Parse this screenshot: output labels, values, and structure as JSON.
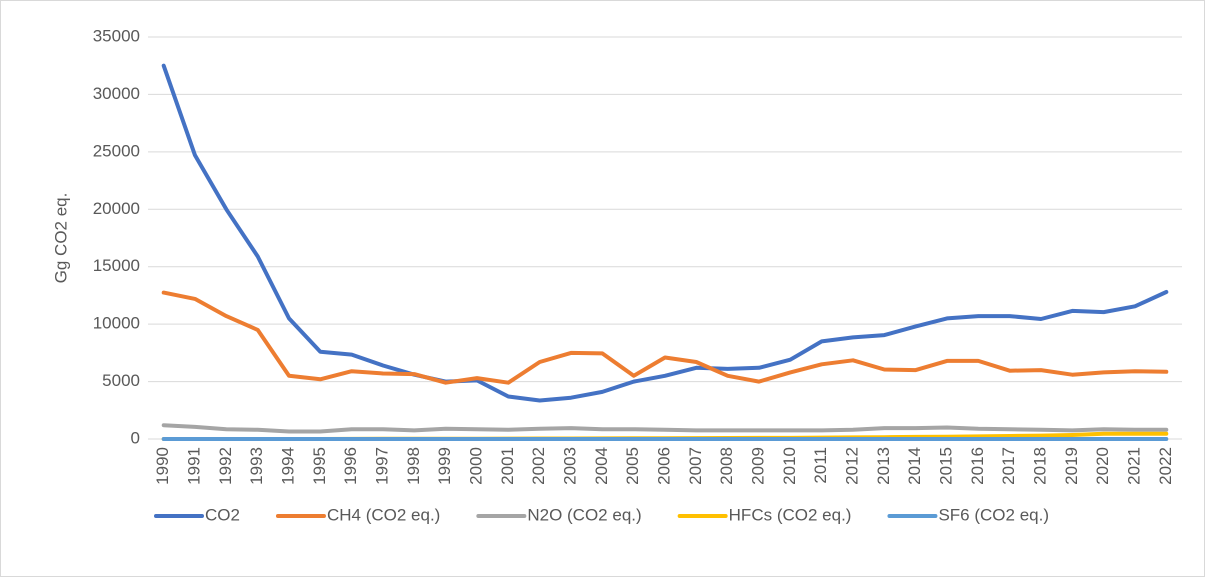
{
  "chart_data": {
    "type": "line",
    "y_label": "Gg CO2 eq.",
    "categories": [
      "1990",
      "1991",
      "1992",
      "1993",
      "1994",
      "1995",
      "1996",
      "1997",
      "1998",
      "1999",
      "2000",
      "2001",
      "2002",
      "2003",
      "2004",
      "2005",
      "2006",
      "2007",
      "2008",
      "2009",
      "2010",
      "2011",
      "2012",
      "2013",
      "2014",
      "2015",
      "2016",
      "2017",
      "2018",
      "2019",
      "2020",
      "2021",
      "2022"
    ],
    "series": [
      {
        "name": "CO2",
        "color": "#4472c4",
        "values": [
          32500,
          24700,
          20000,
          15900,
          10500,
          7600,
          7350,
          6400,
          5600,
          5000,
          5100,
          3700,
          3350,
          3600,
          4100,
          5000,
          5500,
          6200,
          6100,
          6200,
          6900,
          8500,
          8850,
          9050,
          9800,
          10500,
          10700,
          10700,
          10450,
          11150,
          11050,
          11550,
          12800
        ]
      },
      {
        "name": "CH4 (CO2 eq.)",
        "color": "#ed7d31",
        "values": [
          12750,
          12200,
          10700,
          9500,
          5500,
          5200,
          5900,
          5700,
          5650,
          4900,
          5300,
          4900,
          6700,
          7500,
          7450,
          5500,
          7100,
          6700,
          5500,
          5000,
          5800,
          6500,
          6850,
          6050,
          6000,
          6800,
          6800,
          5950,
          6000,
          5600,
          5800,
          5900,
          5850
        ]
      },
      {
        "name": "N2O (CO2 eq.)",
        "color": "#a5a5a5",
        "values": [
          1200,
          1050,
          850,
          800,
          650,
          650,
          850,
          850,
          750,
          900,
          850,
          800,
          900,
          950,
          850,
          850,
          800,
          750,
          750,
          750,
          750,
          750,
          800,
          950,
          950,
          1000,
          900,
          850,
          800,
          750,
          850,
          800,
          800
        ]
      },
      {
        "name": "HFCs (CO2 eq.)",
        "color": "#ffc000",
        "values": [
          0,
          0,
          0,
          0,
          0,
          0,
          10,
          15,
          20,
          25,
          30,
          35,
          40,
          45,
          50,
          60,
          70,
          80,
          90,
          95,
          100,
          120,
          140,
          160,
          180,
          200,
          230,
          260,
          300,
          350,
          450,
          450,
          450
        ]
      },
      {
        "name": "SF6 (CO2 eq.)",
        "color": "#5b9bd5",
        "values": [
          0,
          0,
          0,
          0,
          0,
          0,
          0,
          0,
          0,
          0,
          0,
          0,
          0,
          0,
          0,
          0,
          0,
          0,
          0,
          0,
          0,
          0,
          0,
          0,
          0,
          0,
          0,
          0,
          0,
          0,
          0,
          0,
          0
        ]
      }
    ],
    "ylim": [
      0,
      35000
    ],
    "yticks": [
      0,
      5000,
      10000,
      15000,
      20000,
      25000,
      30000,
      35000
    ],
    "grid": true,
    "legend": "bottom"
  }
}
